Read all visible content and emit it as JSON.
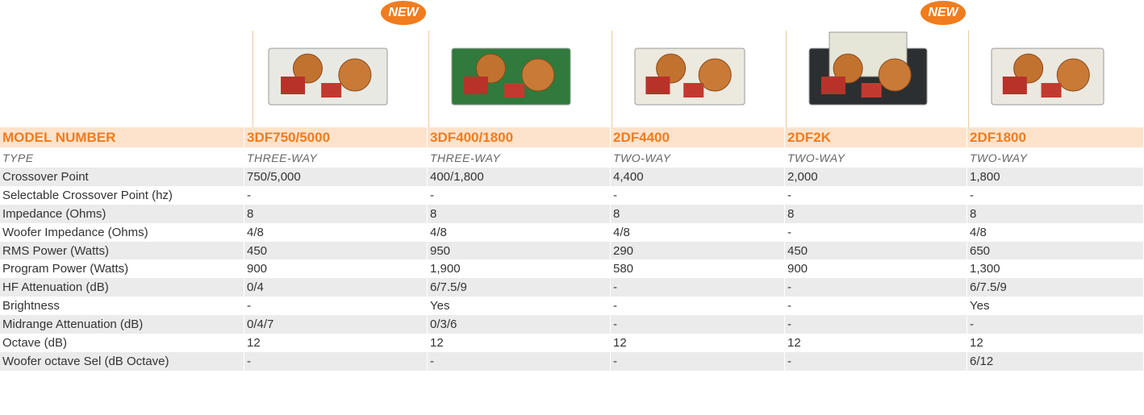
{
  "header": {
    "model_label": "MODEL NUMBER",
    "type_label": "TYPE"
  },
  "products": [
    {
      "model": "3DF750/5000",
      "type": "THREE-WAY",
      "badge": "NEW"
    },
    {
      "model": "3DF400/1800",
      "type": "THREE-WAY"
    },
    {
      "model": "2DF4400",
      "type": "TWO-WAY"
    },
    {
      "model": "2DF2K",
      "type": "TWO-WAY",
      "badge": "NEW"
    },
    {
      "model": "2DF1800",
      "type": "TWO-WAY"
    }
  ],
  "rows": [
    {
      "label": "Crossover Point",
      "values": [
        "750/5,000",
        "400/1,800",
        "4,400",
        "2,000",
        "1,800"
      ]
    },
    {
      "label": "Selectable Crossover Point (hz)",
      "values": [
        "-",
        "-",
        "-",
        "-",
        "-"
      ]
    },
    {
      "label": "Impedance (Ohms)",
      "values": [
        "8",
        "8",
        "8",
        "8",
        "8"
      ]
    },
    {
      "label": "Woofer Impedance (Ohms)",
      "values": [
        "4/8",
        "4/8",
        "4/8",
        "-",
        "4/8"
      ]
    },
    {
      "label": "RMS Power (Watts)",
      "values": [
        "450",
        "950",
        "290",
        "450",
        "650"
      ]
    },
    {
      "label": "Program Power (Watts)",
      "values": [
        "900",
        "1,900",
        "580",
        "900",
        "1,300"
      ]
    },
    {
      "label": "HF Attenuation (dB)",
      "values": [
        "0/4",
        "6/7.5/9",
        "-",
        "-",
        "6/7.5/9"
      ]
    },
    {
      "label": "Brightness",
      "values": [
        "-",
        "Yes",
        "-",
        "-",
        "Yes"
      ]
    },
    {
      "label": "Midrange Attenuation (dB)",
      "values": [
        "0/4/7",
        "0/3/6",
        "-",
        "-",
        "-"
      ]
    },
    {
      "label": "Octave (dB)",
      "values": [
        "12",
        "12",
        "12",
        "12",
        "12"
      ]
    },
    {
      "label": "Woofer octave Sel (dB Octave)",
      "values": [
        "-",
        "-",
        "-",
        "-",
        "6/12"
      ]
    }
  ]
}
